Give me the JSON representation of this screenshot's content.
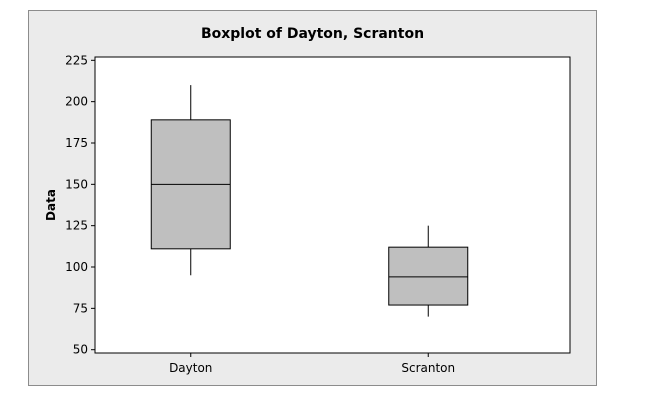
{
  "colors": {
    "frame_background": "#ebebeb",
    "plot_background": "#ffffff",
    "box_fill": "#bfbfbf",
    "line": "#000000"
  },
  "chart_data": {
    "type": "boxplot",
    "title": "Boxplot of Dayton, Scranton",
    "xlabel": "",
    "ylabel": "Data",
    "ylim": [
      48,
      227
    ],
    "yticks": [
      50,
      75,
      100,
      125,
      150,
      175,
      200,
      225
    ],
    "grid": false,
    "categories": [
      "Dayton",
      "Scranton"
    ],
    "boxes": [
      {
        "category": "Dayton",
        "min": 95,
        "q1": 111,
        "median": 150,
        "q3": 189,
        "max": 210
      },
      {
        "category": "Scranton",
        "min": 70,
        "q1": 77,
        "median": 94,
        "q3": 112,
        "max": 125
      }
    ]
  }
}
